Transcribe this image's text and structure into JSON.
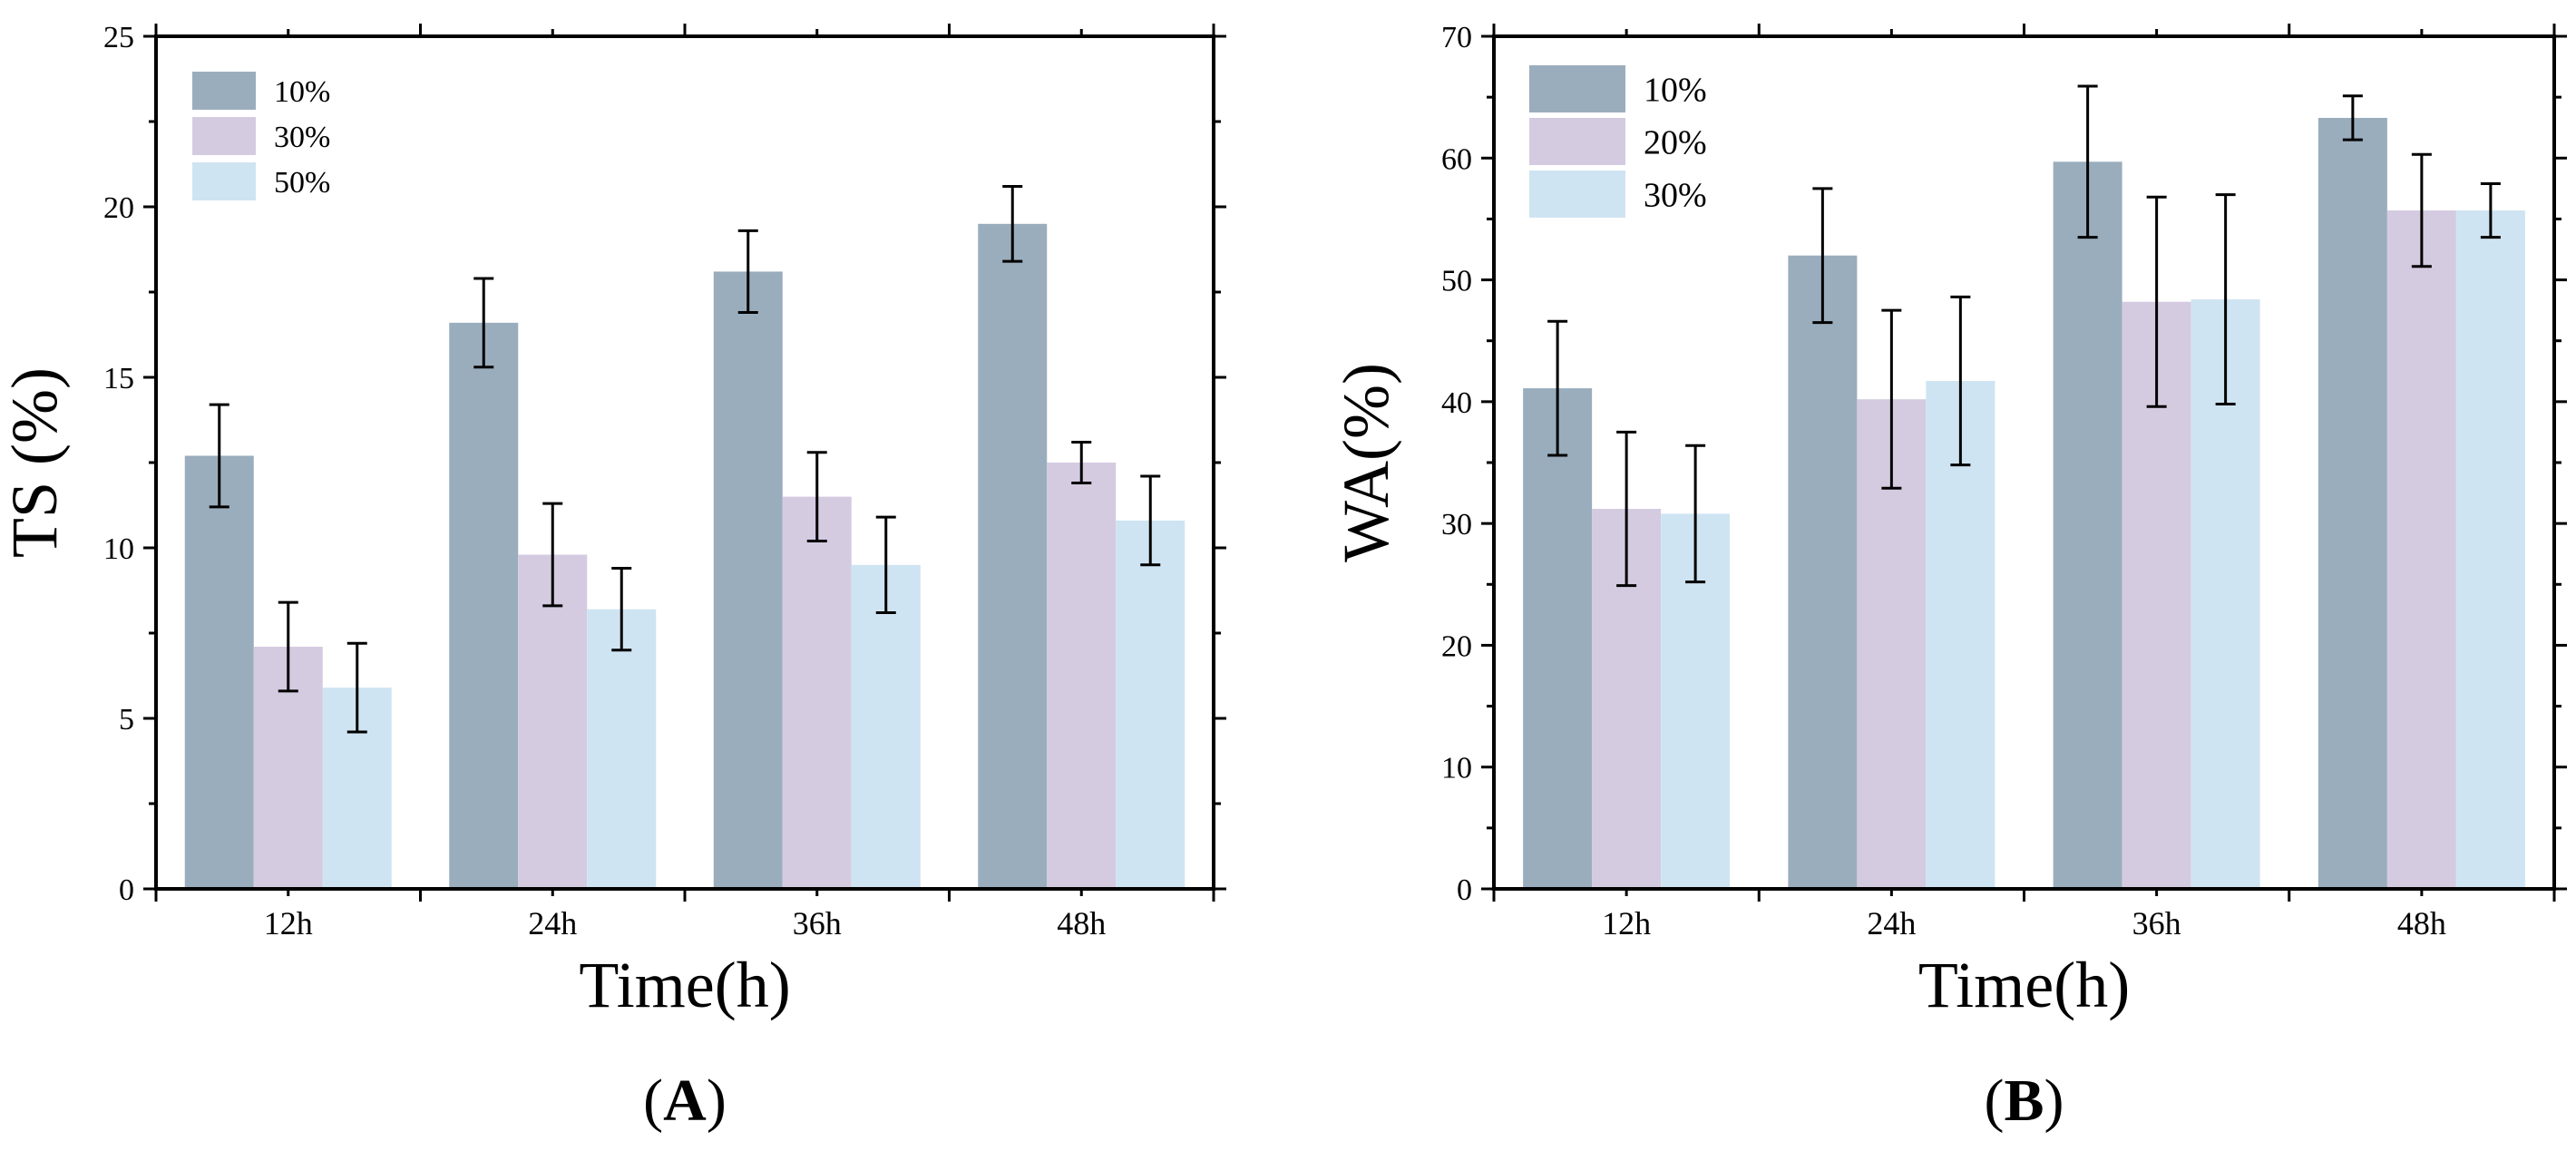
{
  "chart_data": [
    {
      "type": "bar",
      "panel_label": "A",
      "categories": [
        "12h",
        "24h",
        "36h",
        "48h"
      ],
      "xlabel": "Time(h)",
      "ylabel": "TS (%)",
      "ylim": [
        0,
        25
      ],
      "yticks": [
        0,
        5,
        10,
        15,
        20,
        25
      ],
      "legend_position": "top-left",
      "series": [
        {
          "name": "10%",
          "color": "#9aadbd",
          "values": [
            12.7,
            16.6,
            18.1,
            19.5
          ],
          "errors": [
            1.5,
            1.3,
            1.2,
            1.1
          ]
        },
        {
          "name": "30%",
          "color": "#d4cbe1",
          "values": [
            7.1,
            9.8,
            11.5,
            12.5
          ],
          "errors": [
            1.3,
            1.5,
            1.3,
            0.6
          ]
        },
        {
          "name": "50%",
          "color": "#cfe4f2",
          "values": [
            5.9,
            8.2,
            9.5,
            10.8
          ],
          "errors": [
            1.3,
            1.2,
            1.4,
            1.3
          ]
        }
      ]
    },
    {
      "type": "bar",
      "panel_label": "B",
      "categories": [
        "12h",
        "24h",
        "36h",
        "48h"
      ],
      "xlabel": "Time(h)",
      "ylabel": "WA(%)",
      "ylim": [
        0,
        70
      ],
      "yticks": [
        0,
        10,
        20,
        30,
        40,
        50,
        60,
        70
      ],
      "legend_position": "top-left",
      "series": [
        {
          "name": "10%",
          "color": "#9aadbd",
          "values": [
            41.1,
            52.0,
            59.7,
            63.3
          ],
          "errors": [
            5.5,
            5.5,
            6.2,
            1.8
          ]
        },
        {
          "name": "20%",
          "color": "#d4cbe1",
          "values": [
            31.2,
            40.2,
            48.2,
            55.7
          ],
          "errors": [
            6.3,
            7.3,
            8.6,
            4.6
          ]
        },
        {
          "name": "30%",
          "color": "#cfe4f2",
          "values": [
            30.8,
            41.7,
            48.4,
            55.7
          ],
          "errors": [
            5.6,
            6.9,
            8.6,
            2.2
          ]
        }
      ]
    }
  ]
}
